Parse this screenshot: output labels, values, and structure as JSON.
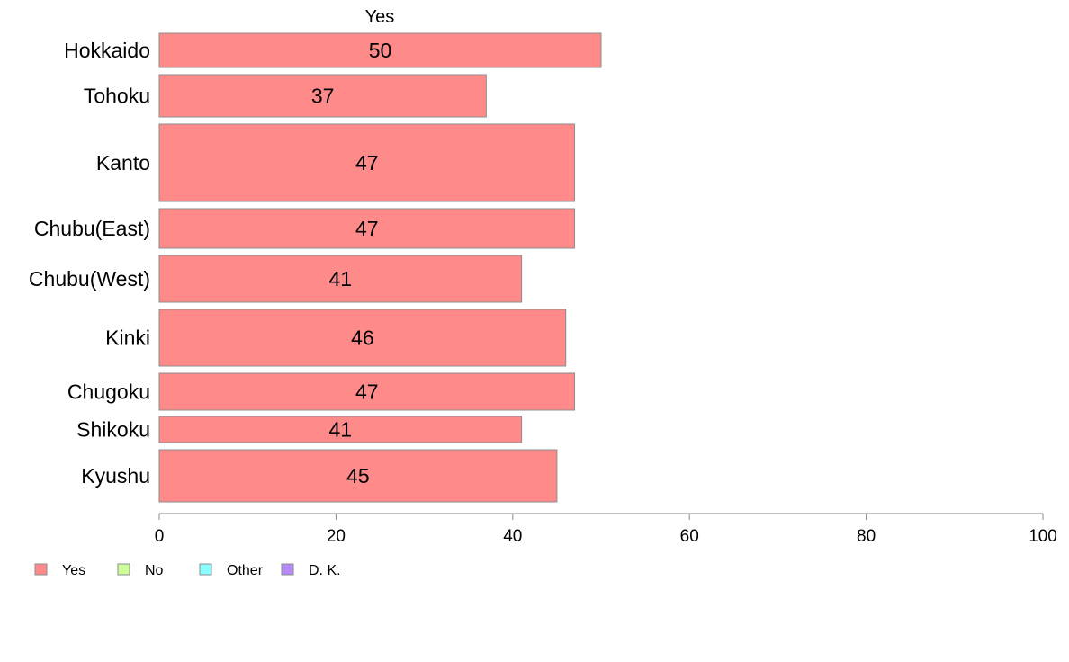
{
  "chart_data": {
    "type": "bar",
    "orientation": "horizontal",
    "stacked": true,
    "series_header": "Yes",
    "categories": [
      "Hokkaido",
      "Tohoku",
      "Kanto",
      "Chubu(East)",
      "Chubu(West)",
      "Kinki",
      "Chugoku",
      "Shikoku",
      "Kyushu"
    ],
    "series": [
      {
        "name": "Yes",
        "color": "#FF8A8A",
        "values": [
          50,
          37,
          47,
          47,
          41,
          46,
          47,
          41,
          45
        ]
      }
    ],
    "value_labels": [
      "50",
      "37",
      "47",
      "47",
      "41",
      "46",
      "47",
      "41",
      "45"
    ],
    "xlim": [
      0,
      100
    ],
    "xticks": [
      0,
      20,
      40,
      60,
      80,
      100
    ],
    "xlabel": "",
    "ylabel": "",
    "grid": false,
    "legend": {
      "placement": "bottom-left",
      "items": [
        {
          "name": "Yes",
          "color": "#FF8A8A"
        },
        {
          "name": "No",
          "color": "#CCFF99"
        },
        {
          "name": "Other",
          "color": "#8AFFFF"
        },
        {
          "name": "D. K.",
          "color": "#B58AF5"
        }
      ]
    }
  }
}
